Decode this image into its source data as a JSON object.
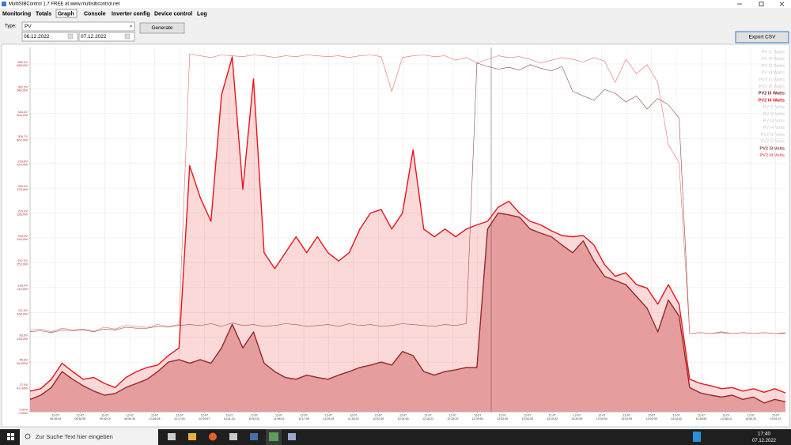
{
  "window": {
    "title": "MultiSIBControl 1.7 FREE at www.multisibcontrol.net"
  },
  "menu": [
    "Monitoring",
    "Totals",
    "Graph",
    "Console",
    "Inverter config",
    "Device control",
    "Log"
  ],
  "controls": {
    "type_label": "Type:",
    "type_value": "PV",
    "date_from": "06.12.2022",
    "date_to": "07.12.2022",
    "generate": "Generate",
    "export": "Export CSV"
  },
  "taskbar": {
    "search": "Zur Suche Text hier eingeben",
    "time": "17:40",
    "date": "07.12.2022"
  },
  "chart_data": {
    "type": "line",
    "grid": true,
    "ylim": [
      0,
      616
    ],
    "yticks": [
      {
        "value": 0,
        "label": "0,00W"
      },
      {
        "value": 42,
        "label": "42,00W"
      },
      {
        "value": 84,
        "label": "84,00W"
      },
      {
        "value": 126,
        "label": "126,0W"
      },
      {
        "value": 168,
        "label": "168,0W"
      },
      {
        "value": 210,
        "label": "210,0W"
      },
      {
        "value": 252,
        "label": "252,0W"
      },
      {
        "value": 294,
        "label": "294,0W"
      },
      {
        "value": 336,
        "label": "336,0W"
      },
      {
        "value": 378,
        "label": "378,0W"
      },
      {
        "value": 420,
        "label": "420,0W"
      },
      {
        "value": 462,
        "label": "462,0W"
      },
      {
        "value": 504,
        "label": "504,0W"
      },
      {
        "value": 546,
        "label": "546,0W"
      },
      {
        "value": 588,
        "label": "588,0W"
      }
    ],
    "y2lim": [
      0,
      409.4
    ],
    "y2ticks": [
      {
        "value": 0,
        "label": "0,00V"
      },
      {
        "value": 27.9,
        "label": "27,9V"
      },
      {
        "value": 55.8,
        "label": "55,8V"
      },
      {
        "value": 83.6,
        "label": "83,6V"
      },
      {
        "value": 111.5,
        "label": "111,5V"
      },
      {
        "value": 139.4,
        "label": "139,4V"
      },
      {
        "value": 167.3,
        "label": "167,3V"
      },
      {
        "value": 195.2,
        "label": "195,2V"
      },
      {
        "value": 223.0,
        "label": "223,0V"
      },
      {
        "value": 250.9,
        "label": "250,9V"
      },
      {
        "value": 278.8,
        "label": "278,8V"
      },
      {
        "value": 306.7,
        "label": "306,7V"
      },
      {
        "value": 334.6,
        "label": "334,6V"
      },
      {
        "value": 362.5,
        "label": "362,5V"
      },
      {
        "value": 390.4,
        "label": "390,4V"
      }
    ],
    "xlabels": [
      {
        "date": "12-07",
        "time": "09:18:44"
      },
      {
        "date": "12-07",
        "time": "09:30:50"
      },
      {
        "date": "12-07",
        "time": "09:42:19"
      },
      {
        "date": "12-07",
        "time": "09:54:30"
      },
      {
        "date": "12-07",
        "time": "10:06:26"
      },
      {
        "date": "12-07",
        "time": "10:17:51"
      },
      {
        "date": "12-07",
        "time": "10:29:57"
      },
      {
        "date": "12-07",
        "time": "10:41:24"
      },
      {
        "date": "12-07",
        "time": "10:53:32"
      },
      {
        "date": "12-07",
        "time": "11:06:01"
      },
      {
        "date": "12-07",
        "time": "11:17:09"
      },
      {
        "date": "12-07",
        "time": "11:29:15"
      },
      {
        "date": "12-07",
        "time": "11:40:42"
      },
      {
        "date": "12-07",
        "time": "11:52:49"
      },
      {
        "date": "12-07",
        "time": "12:04:16"
      },
      {
        "date": "12-07",
        "time": "12:16:21"
      },
      {
        "date": "12-07",
        "time": "12:28:29"
      },
      {
        "date": "12-07",
        "time": "12:39:54"
      },
      {
        "date": "12-07",
        "time": "12:52:00"
      },
      {
        "date": "12-07",
        "time": "13:03:28"
      },
      {
        "date": "12-07",
        "time": "13:15:32"
      },
      {
        "date": "12-07",
        "time": "13:26:59"
      },
      {
        "date": "12-07",
        "time": "13:39:04"
      },
      {
        "date": "12-07",
        "time": "13:51:09"
      },
      {
        "date": "12-07",
        "time": "14:02:39"
      },
      {
        "date": "12-07",
        "time": "14:14:42"
      },
      {
        "date": "12-07",
        "time": "14:26:50"
      },
      {
        "date": "12-07",
        "time": "14:38:14"
      },
      {
        "date": "12-07",
        "time": "14:50:20"
      },
      {
        "date": "12-07",
        "time": "15:01:47"
      }
    ],
    "legend_inactive_color": "#c8c8c8",
    "watts_legend_inactive": [
      "PV I1 Watts",
      "PV I2 Watts",
      "PV I3 Watts",
      "PV I4 Watts",
      "PV2 I1 Watts",
      "PV2 I2 Watts"
    ],
    "volts_legend_inactive": [
      "PV I1 Volts",
      "PV I2 Volts",
      "PV I3 Volts",
      "PV I4 Volts",
      "PV2 I1 Volts",
      "PV2 I2 Volts"
    ],
    "series": [
      {
        "name": "PV2 I3 Watts",
        "color": "#7a1f1f",
        "fill": "#e3b3b3",
        "values": [
          21,
          28,
          41,
          68,
          55,
          44,
          35,
          28,
          31,
          41,
          48,
          55,
          68,
          84,
          88,
          82,
          88,
          82,
          108,
          148,
          108,
          135,
          82,
          68,
          58,
          55,
          62,
          58,
          55,
          62,
          68,
          75,
          79,
          84,
          79,
          102,
          95,
          68,
          62,
          68,
          71,
          75,
          75,
          309,
          336,
          333,
          329,
          309,
          302,
          296,
          282,
          269,
          289,
          255,
          229,
          222,
          215,
          195,
          175,
          135,
          189,
          162,
          41,
          32,
          28,
          25,
          28,
          21,
          25,
          15,
          21,
          17
        ]
      },
      {
        "name": "PV2 I4 Watts",
        "color": "#e8141b",
        "fill": "rgba(240,80,80,0.22)",
        "values": [
          35,
          39,
          55,
          82,
          68,
          55,
          58,
          48,
          41,
          58,
          68,
          75,
          79,
          95,
          108,
          416,
          362,
          322,
          536,
          600,
          376,
          563,
          269,
          242,
          269,
          296,
          269,
          296,
          269,
          255,
          269,
          309,
          336,
          342,
          309,
          336,
          443,
          309,
          296,
          309,
          296,
          309,
          316,
          322,
          346,
          356,
          336,
          322,
          316,
          306,
          298,
          296,
          298,
          282,
          249,
          229,
          235,
          215,
          209,
          182,
          215,
          182,
          55,
          48,
          44,
          39,
          41,
          35,
          39,
          33,
          39,
          32
        ]
      },
      {
        "name": "PV2 I3 Volts",
        "color": "#8a4a4a",
        "axis": "y2",
        "values": [
          90,
          91,
          89,
          92,
          91,
          92,
          90,
          93,
          92,
          95,
          94,
          94,
          96,
          95,
          97,
          98,
          97,
          99,
          96,
          100,
          97,
          98,
          96,
          97,
          99,
          98,
          96,
          97,
          98,
          96,
          99,
          97,
          98,
          96,
          97,
          99,
          98,
          97,
          96,
          98,
          97,
          99,
          392,
          388,
          385,
          387,
          384,
          390,
          386,
          383,
          388,
          360,
          355,
          350,
          362,
          358,
          348,
          355,
          340,
          352,
          345,
          330,
          88,
          89,
          88,
          89,
          88,
          89,
          88,
          89,
          88,
          88
        ]
      },
      {
        "name": "PV2 I4 Volts",
        "color": "#ef6a6a",
        "axis": "y2",
        "values": [
          92,
          93,
          90,
          94,
          92,
          93,
          91,
          95,
          93,
          97,
          96,
          95,
          98,
          96,
          98,
          402,
          400,
          398,
          401,
          400,
          399,
          401,
          400,
          398,
          400,
          399,
          401,
          400,
          399,
          400,
          398,
          400,
          401,
          399,
          360,
          398,
          400,
          401,
          399,
          400,
          395,
          398,
          392,
          396,
          400,
          398,
          399,
          396,
          392,
          395,
          398,
          396,
          393,
          398,
          394,
          370,
          396,
          380,
          390,
          370,
          300,
          280,
          88,
          89,
          88,
          90,
          88,
          89,
          88,
          89,
          88,
          89
        ]
      }
    ]
  }
}
